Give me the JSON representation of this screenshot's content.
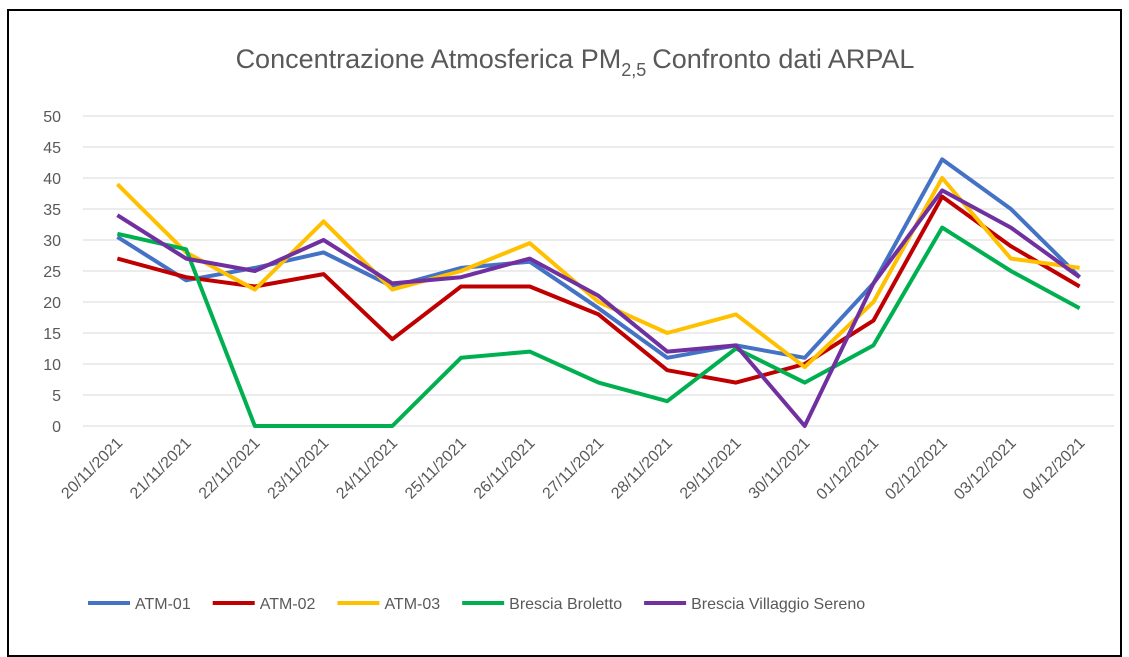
{
  "chart_data": {
    "type": "line",
    "title": "Concentrazione  Atmosferica PM",
    "title_subscript": "2,5",
    "title_end": "Confronto dati ARPAL",
    "categories": [
      "20/11/2021",
      "21/11/2021",
      "22/11/2021",
      "23/11/2021",
      "24/11/2021",
      "25/11/2021",
      "26/11/2021",
      "27/11/2021",
      "28/11/2021",
      "29/11/2021",
      "30/11/2021",
      "01/12/2021",
      "02/12/2021",
      "03/12/2021",
      "04/12/2021"
    ],
    "series": [
      {
        "name": "ATM-01",
        "color": "#4472c4",
        "values": [
          30.5,
          23.5,
          25.5,
          28,
          22.5,
          25.5,
          26.5,
          19,
          11,
          13,
          11,
          23,
          43,
          35,
          24
        ]
      },
      {
        "name": "ATM-02",
        "color": "#c00000",
        "values": [
          27,
          24,
          22.5,
          24.5,
          14,
          22.5,
          22.5,
          18,
          9,
          7,
          10,
          17,
          37,
          29,
          22.5
        ]
      },
      {
        "name": "ATM-03",
        "color": "#ffc000",
        "values": [
          39,
          28,
          22,
          33,
          22,
          25,
          29.5,
          20,
          15,
          18,
          9.5,
          20,
          40,
          27,
          25.5
        ]
      },
      {
        "name": "Brescia Broletto",
        "color": "#00b050",
        "values": [
          31,
          28.5,
          0,
          0,
          0,
          11,
          12,
          7,
          4,
          12.5,
          7,
          13,
          32,
          25,
          19
        ]
      },
      {
        "name": "Brescia Villaggio Sereno",
        "color": "#7030a0",
        "values": [
          34,
          27,
          25,
          30,
          23,
          24,
          27,
          21,
          12,
          13,
          0,
          23,
          38,
          32,
          24
        ]
      }
    ],
    "ylim": [
      0,
      50
    ],
    "yticks": [
      0,
      5,
      10,
      15,
      20,
      25,
      30,
      35,
      40,
      45,
      50
    ],
    "grid": true,
    "legend": "bottom"
  }
}
